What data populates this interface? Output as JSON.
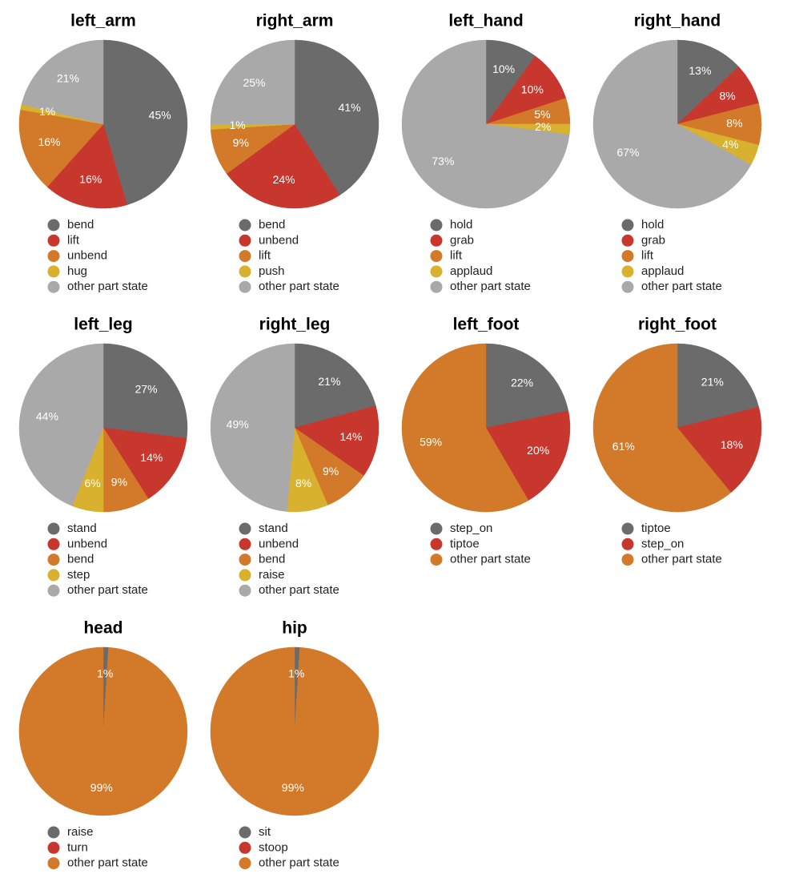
{
  "colors": {
    "dark_gray": "#6b6b6b",
    "red": "#c8372d",
    "orange": "#d27a2a",
    "yellow": "#d8b12e",
    "light_gray": "#a9a9a9",
    "label_text": "#ffffff",
    "legend_text": "#222222",
    "title_text": "#000000"
  },
  "chart_data": [
    {
      "type": "pie",
      "title": "left_arm",
      "slices": [
        {
          "label": "bend",
          "value": 45,
          "text": "45%",
          "color": "#6b6b6b"
        },
        {
          "label": "lift",
          "value": 16,
          "text": "16%",
          "color": "#c8372d"
        },
        {
          "label": "unbend",
          "value": 16,
          "text": "16%",
          "color": "#d27a2a"
        },
        {
          "label": "hug",
          "value": 1,
          "text": "1%",
          "color": "#d8b12e"
        },
        {
          "label": "other part state",
          "value": 21,
          "text": "21%",
          "color": "#a9a9a9"
        }
      ]
    },
    {
      "type": "pie",
      "title": "right_arm",
      "slices": [
        {
          "label": "bend",
          "value": 41,
          "text": "41%",
          "color": "#6b6b6b"
        },
        {
          "label": "unbend",
          "value": 24,
          "text": "24%",
          "color": "#c8372d"
        },
        {
          "label": "lift",
          "value": 9,
          "text": "9%",
          "color": "#d27a2a"
        },
        {
          "label": "push",
          "value": 1,
          "text": "1%",
          "color": "#d8b12e"
        },
        {
          "label": "other part state",
          "value": 25,
          "text": "25%",
          "color": "#a9a9a9"
        }
      ]
    },
    {
      "type": "pie",
      "title": "left_hand",
      "slices": [
        {
          "label": "hold",
          "value": 10,
          "text": "10%",
          "color": "#6b6b6b"
        },
        {
          "label": "grab",
          "value": 10,
          "text": "10%",
          "color": "#c8372d"
        },
        {
          "label": "lift",
          "value": 5,
          "text": "5%",
          "color": "#d27a2a"
        },
        {
          "label": "applaud",
          "value": 2,
          "text": "2%",
          "color": "#d8b12e"
        },
        {
          "label": "other part state",
          "value": 73,
          "text": "73%",
          "color": "#a9a9a9"
        }
      ]
    },
    {
      "type": "pie",
      "title": "right_hand",
      "slices": [
        {
          "label": "hold",
          "value": 13,
          "text": "13%",
          "color": "#6b6b6b"
        },
        {
          "label": "grab",
          "value": 8,
          "text": "8%",
          "color": "#c8372d"
        },
        {
          "label": "lift",
          "value": 8,
          "text": "8%",
          "color": "#d27a2a"
        },
        {
          "label": "applaud",
          "value": 4,
          "text": "4%",
          "color": "#d8b12e"
        },
        {
          "label": "other part state",
          "value": 67,
          "text": "67%",
          "color": "#a9a9a9"
        }
      ]
    },
    {
      "type": "pie",
      "title": "left_leg",
      "slices": [
        {
          "label": "stand",
          "value": 27,
          "text": "27%",
          "color": "#6b6b6b"
        },
        {
          "label": "unbend",
          "value": 14,
          "text": "14%",
          "color": "#c8372d"
        },
        {
          "label": "bend",
          "value": 9,
          "text": "9%",
          "color": "#d27a2a"
        },
        {
          "label": "step",
          "value": 6,
          "text": "6%",
          "color": "#d8b12e"
        },
        {
          "label": "other part state",
          "value": 44,
          "text": "44%",
          "color": "#a9a9a9"
        }
      ]
    },
    {
      "type": "pie",
      "title": "right_leg",
      "slices": [
        {
          "label": "stand",
          "value": 21,
          "text": "21%",
          "color": "#6b6b6b"
        },
        {
          "label": "unbend",
          "value": 14,
          "text": "14%",
          "color": "#c8372d"
        },
        {
          "label": "bend",
          "value": 9,
          "text": "9%",
          "color": "#d27a2a"
        },
        {
          "label": "raise",
          "value": 8,
          "text": "8%",
          "color": "#d8b12e"
        },
        {
          "label": "other part state",
          "value": 49,
          "text": "49%",
          "color": "#a9a9a9"
        }
      ]
    },
    {
      "type": "pie",
      "title": "left_foot",
      "slices": [
        {
          "label": "step_on",
          "value": 22,
          "text": "22%",
          "color": "#6b6b6b"
        },
        {
          "label": "tiptoe",
          "value": 20,
          "text": "20%",
          "color": "#c8372d"
        },
        {
          "label": "other part state",
          "value": 59,
          "text": "59%",
          "color": "#d27a2a"
        }
      ]
    },
    {
      "type": "pie",
      "title": "right_foot",
      "slices": [
        {
          "label": "tiptoe",
          "value": 21,
          "text": "21%",
          "color": "#6b6b6b"
        },
        {
          "label": "step_on",
          "value": 18,
          "text": "18%",
          "color": "#c8372d"
        },
        {
          "label": "other part state",
          "value": 61,
          "text": "61%",
          "color": "#d27a2a"
        }
      ]
    },
    {
      "type": "pie",
      "title": "head",
      "slices": [
        {
          "label": "raise",
          "value": 1,
          "text": "1%",
          "color": "#6b6b6b"
        },
        {
          "label": "turn",
          "value": 0,
          "text": "",
          "color": "#c8372d"
        },
        {
          "label": "other part state",
          "value": 99,
          "text": "99%",
          "color": "#d27a2a"
        }
      ]
    },
    {
      "type": "pie",
      "title": "hip",
      "slices": [
        {
          "label": "sit",
          "value": 1,
          "text": "1%",
          "color": "#6b6b6b"
        },
        {
          "label": "stoop",
          "value": 0,
          "text": "",
          "color": "#c8372d"
        },
        {
          "label": "other part state",
          "value": 99,
          "text": "99%",
          "color": "#d27a2a"
        }
      ]
    }
  ]
}
